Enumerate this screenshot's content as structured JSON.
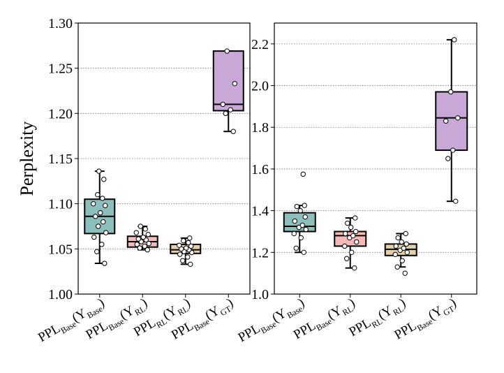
{
  "chart_data": [
    {
      "type": "box",
      "ylabel": "Perplexity",
      "ylim": [
        1.0,
        1.3
      ],
      "yticks": [
        1.0,
        1.05,
        1.1,
        1.15,
        1.2,
        1.25,
        1.3
      ],
      "ytick_labels": [
        "1.00",
        "1.05",
        "1.10",
        "1.15",
        "1.20",
        "1.25",
        "1.30"
      ],
      "grid": "horizontal-dotted",
      "categories": [
        {
          "main": "PPL",
          "sub1": "Base",
          "arg": "Y",
          "sub2": "Base"
        },
        {
          "main": "PPL",
          "sub1": "Base",
          "arg": "Y",
          "sub2": "RL"
        },
        {
          "main": "PPL",
          "sub1": "RL",
          "arg": "Y",
          "sub2": "RL"
        },
        {
          "main": "PPL",
          "sub1": "Base",
          "arg": "Y",
          "sub2": "GT"
        }
      ],
      "boxes": [
        {
          "color": "#8bbfbc",
          "whisker_low": 1.034,
          "q1": 1.067,
          "median": 1.086,
          "q3": 1.105,
          "whisker_high": 1.136,
          "points": [
            1.034,
            1.047,
            1.055,
            1.063,
            1.068,
            1.075,
            1.08,
            1.086,
            1.09,
            1.098,
            1.1,
            1.106,
            1.11,
            1.127,
            1.136
          ]
        },
        {
          "color": "#f6b9b8",
          "whisker_low": 1.049,
          "q1": 1.052,
          "median": 1.058,
          "q3": 1.064,
          "whisker_high": 1.075,
          "points": [
            1.049,
            1.051,
            1.053,
            1.055,
            1.056,
            1.058,
            1.06,
            1.061,
            1.063,
            1.066,
            1.068,
            1.072,
            1.075
          ]
        },
        {
          "color": "#e4d2a6",
          "whisker_low": 1.033,
          "q1": 1.045,
          "median": 1.049,
          "q3": 1.055,
          "whisker_high": 1.062,
          "points": [
            1.033,
            1.037,
            1.041,
            1.044,
            1.046,
            1.047,
            1.049,
            1.05,
            1.051,
            1.053,
            1.054,
            1.057,
            1.059,
            1.062
          ]
        },
        {
          "color": "#c7a8d6",
          "whisker_low": 1.18,
          "q1": 1.203,
          "median": 1.21,
          "q3": 1.269,
          "whisker_high": 1.269,
          "points": [
            1.18,
            1.2,
            1.204,
            1.21,
            1.233,
            1.269
          ]
        }
      ]
    },
    {
      "type": "box",
      "ylabel": "",
      "ylim": [
        1.0,
        2.3
      ],
      "yticks": [
        1.0,
        1.2,
        1.4,
        1.6,
        1.8,
        2.0,
        2.2
      ],
      "ytick_labels": [
        "1.0",
        "1.2",
        "1.4",
        "1.6",
        "1.8",
        "2.0",
        "2.2"
      ],
      "grid": "horizontal-dotted",
      "categories": [
        {
          "main": "PPL",
          "sub1": "Base",
          "arg": "Y",
          "sub2": "Base"
        },
        {
          "main": "PPL",
          "sub1": "Base",
          "arg": "Y",
          "sub2": "RL"
        },
        {
          "main": "PPL",
          "sub1": "RL",
          "arg": "Y",
          "sub2": "RL"
        },
        {
          "main": "PPL",
          "sub1": "Base",
          "arg": "Y",
          "sub2": "GT"
        }
      ],
      "boxes": [
        {
          "color": "#8bbfbc",
          "whisker_low": 1.2,
          "q1": 1.3,
          "median": 1.325,
          "q3": 1.39,
          "whisker_high": 1.425,
          "points": [
            1.2,
            1.22,
            1.27,
            1.29,
            1.31,
            1.32,
            1.33,
            1.35,
            1.37,
            1.4,
            1.42,
            1.425,
            1.575
          ]
        },
        {
          "color": "#f6b9b8",
          "whisker_low": 1.125,
          "q1": 1.23,
          "median": 1.28,
          "q3": 1.3,
          "whisker_high": 1.365,
          "points": [
            1.125,
            1.17,
            1.2,
            1.23,
            1.25,
            1.27,
            1.28,
            1.29,
            1.3,
            1.32,
            1.34,
            1.365
          ]
        },
        {
          "color": "#e4d2a6",
          "whisker_low": 1.13,
          "q1": 1.185,
          "median": 1.215,
          "q3": 1.24,
          "whisker_high": 1.29,
          "points": [
            1.1,
            1.13,
            1.16,
            1.19,
            1.2,
            1.21,
            1.22,
            1.23,
            1.24,
            1.25,
            1.27,
            1.29
          ]
        },
        {
          "color": "#c7a8d6",
          "whisker_low": 1.445,
          "q1": 1.69,
          "median": 1.845,
          "q3": 1.97,
          "whisker_high": 2.22,
          "points": [
            1.445,
            1.65,
            1.69,
            1.83,
            1.845,
            1.97,
            2.22
          ]
        }
      ]
    }
  ]
}
